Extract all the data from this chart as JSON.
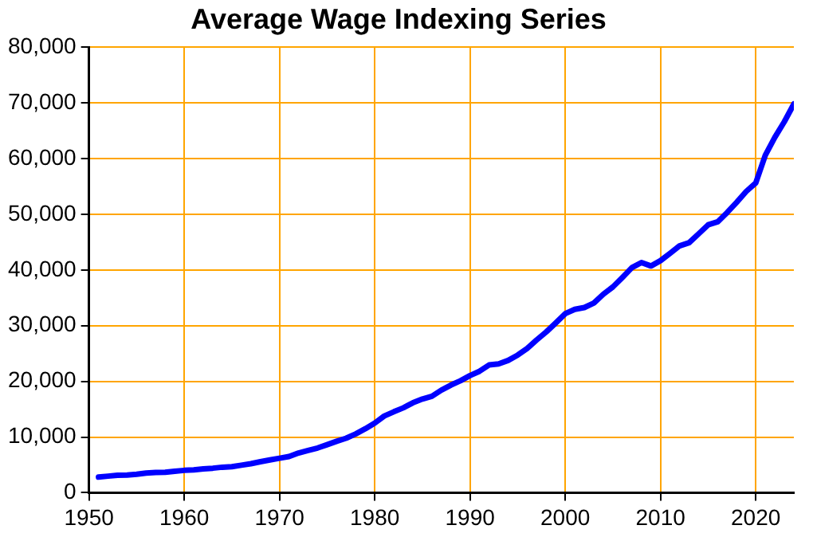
{
  "chart_data": {
    "type": "line",
    "title": "Average Wage Indexing Series",
    "x": [
      1951,
      1952,
      1953,
      1954,
      1955,
      1956,
      1957,
      1958,
      1959,
      1960,
      1961,
      1962,
      1963,
      1964,
      1965,
      1966,
      1967,
      1968,
      1969,
      1970,
      1971,
      1972,
      1973,
      1974,
      1975,
      1976,
      1977,
      1978,
      1979,
      1980,
      1981,
      1982,
      1983,
      1984,
      1985,
      1986,
      1987,
      1988,
      1989,
      1990,
      1991,
      1992,
      1993,
      1994,
      1995,
      1996,
      1997,
      1998,
      1999,
      2000,
      2001,
      2002,
      2003,
      2004,
      2005,
      2006,
      2007,
      2008,
      2009,
      2010,
      2011,
      2012,
      2013,
      2014,
      2015,
      2016,
      2017,
      2018,
      2019,
      2020,
      2021,
      2022,
      2023,
      2024
    ],
    "series": [
      {
        "color": "#0000ff",
        "values": [
          2800,
          2970,
          3140,
          3160,
          3300,
          3530,
          3640,
          3670,
          3860,
          4010,
          4090,
          4290,
          4400,
          4580,
          4660,
          4940,
          5210,
          5570,
          5890,
          6190,
          6500,
          7130,
          7580,
          8030,
          8630,
          9230,
          9780,
          10560,
          11480,
          12510,
          13770,
          14530,
          15240,
          16140,
          16820,
          17320,
          18430,
          19330,
          20100,
          21030,
          21810,
          22940,
          23130,
          23750,
          24710,
          25910,
          27430,
          28860,
          30470,
          32150,
          32920,
          33250,
          34060,
          35650,
          36950,
          38650,
          40410,
          41330,
          40710,
          41670,
          42980,
          44320,
          44890,
          46480,
          48100,
          48640,
          50320,
          52150,
          54100,
          55630,
          60580,
          63800,
          66620,
          69800
        ]
      }
    ],
    "xlim": [
      1950,
      2024
    ],
    "xticks": [
      1950,
      1960,
      1970,
      1980,
      1990,
      2000,
      2010,
      2020
    ],
    "ylim": [
      0,
      80000
    ],
    "yticks": [
      {
        "value": 0,
        "label": "0"
      },
      {
        "value": 10000,
        "label": "10,000"
      },
      {
        "value": 20000,
        "label": "20,000"
      },
      {
        "value": 30000,
        "label": "30,000"
      },
      {
        "value": 40000,
        "label": "40,000"
      },
      {
        "value": 50000,
        "label": "50,000"
      },
      {
        "value": 60000,
        "label": "60,000"
      },
      {
        "value": 70000,
        "label": "70,000"
      },
      {
        "value": 80000,
        "label": "80,000"
      }
    ],
    "grid": true,
    "marker": "none",
    "line_style": "solid"
  }
}
